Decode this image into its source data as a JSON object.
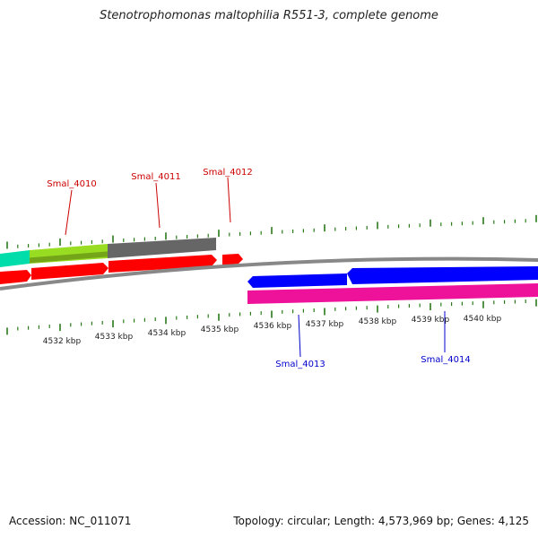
{
  "header": {
    "title": "Stenotrophomonas maltophilia R551-3, complete genome"
  },
  "footer": {
    "accession": "Accession: NC_011071",
    "summary": "Topology: circular; Length: 4,573,969 bp; Genes: 4,125"
  },
  "colors": {
    "backbone": "#888888",
    "tick": "#2a7a1a",
    "forward_label": "#cc0000",
    "reverse_label": "#0000cc",
    "cds": "#ff0000",
    "gene_blue": "#0000ff",
    "gene_pink": "#ee1199",
    "gene_grey": "#666666",
    "gene_lime": "#99dd22",
    "gene_teal": "#00ddaa"
  },
  "chart_data": {
    "type": "genome-map",
    "axis": {
      "unit": "kbp",
      "ticks": [
        4532,
        4533,
        4534,
        4535,
        4536,
        4537,
        4538,
        4539,
        4540
      ]
    },
    "gene_labels": [
      {
        "name": "Smal_4010",
        "strand": "forward"
      },
      {
        "name": "Smal_4011",
        "strand": "forward"
      },
      {
        "name": "Smal_4012",
        "strand": "forward"
      },
      {
        "name": "Smal_4013",
        "strand": "reverse"
      },
      {
        "name": "Smal_4014",
        "strand": "reverse"
      }
    ]
  }
}
